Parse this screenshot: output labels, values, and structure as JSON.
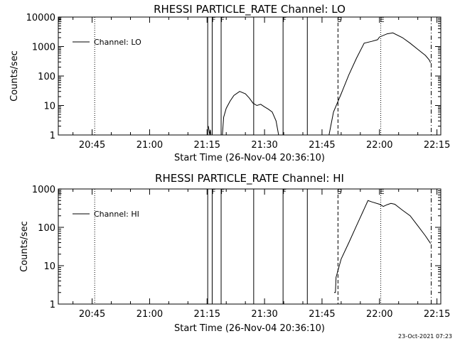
{
  "chart_data": [
    {
      "type": "line",
      "title": "RHESSI PARTICLE_RATE Channel: LO",
      "xlabel": "Start Time (26-Nov-04 20:36:10)",
      "ylabel": "Counts/sec",
      "yscale": "log",
      "ylim": [
        1,
        10000
      ],
      "xlim": [
        "20:36:10",
        "22:16:00"
      ],
      "x_ticks": [
        "20:45",
        "21:00",
        "21:15",
        "21:30",
        "21:45",
        "22:00",
        "22:15"
      ],
      "y_ticks": [
        "1",
        "10",
        "100",
        "1000",
        "10000"
      ],
      "legend": {
        "placement": "top-left",
        "entries": [
          "Channel: LO"
        ]
      },
      "grid": false,
      "series": [
        {
          "name": "Channel: LO",
          "segments": [
            [
              [
                "21:15:20",
                2
              ],
              [
                "21:15:40",
                1
              ],
              [
                "21:15:50",
                1.5
              ],
              [
                "21:16:00",
                1
              ]
            ],
            [
              [
                "21:19:00",
                1
              ],
              [
                "21:19:20",
                4
              ],
              [
                "21:20:00",
                8
              ],
              [
                "21:21:00",
                14
              ],
              [
                "21:22:00",
                22
              ],
              [
                "21:23:30",
                30
              ],
              [
                "21:25:00",
                25
              ],
              [
                "21:26:00",
                18
              ],
              [
                "21:27:00",
                12
              ],
              [
                "21:28:00",
                10
              ],
              [
                "21:29:00",
                11
              ],
              [
                "21:30:00",
                9
              ],
              [
                "21:31:00",
                7.5
              ],
              [
                "21:32:00",
                6
              ],
              [
                "21:33:00",
                3
              ],
              [
                "21:33:40",
                1
              ]
            ],
            [
              [
                "21:46:50",
                1
              ],
              [
                "21:48:00",
                6
              ],
              [
                "21:50:00",
                25
              ],
              [
                "21:52:00",
                110
              ],
              [
                "21:54:00",
                400
              ],
              [
                "21:56:00",
                1300
              ],
              [
                "21:58:00",
                1500
              ],
              [
                "21:59:30",
                1700
              ],
              [
                "22:00:00",
                2100
              ],
              [
                "22:02:00",
                2700
              ],
              [
                "22:03:30",
                2900
              ],
              [
                "22:06:00",
                2000
              ],
              [
                "22:08:00",
                1300
              ],
              [
                "22:10:00",
                800
              ],
              [
                "22:12:00",
                500
              ],
              [
                "22:13:00",
                350
              ],
              [
                "22:13:20",
                280
              ]
            ]
          ]
        }
      ],
      "markers": [
        {
          "label": "E",
          "time": "20:36:10",
          "style": "dotted"
        },
        {
          "label": "",
          "time": "20:45:40",
          "style": "dotted"
        },
        {
          "label": "F",
          "time": "21:16:20",
          "style": "solid"
        },
        {
          "label": "F",
          "time": "21:18:40",
          "style": "solid"
        },
        {
          "label": "",
          "time": "21:15:10",
          "style": "solid"
        },
        {
          "label": "",
          "time": "21:27:10",
          "style": "solid"
        },
        {
          "label": "F",
          "time": "21:34:50",
          "style": "solid"
        },
        {
          "label": "",
          "time": "21:41:10",
          "style": "solid"
        },
        {
          "label": "S",
          "time": "21:49:10",
          "style": "dashed"
        },
        {
          "label": "E",
          "time": "22:00:20",
          "style": "dotted"
        },
        {
          "label": "",
          "time": "22:13:30",
          "style": "dashdot"
        }
      ]
    },
    {
      "type": "line",
      "title": "RHESSI PARTICLE_RATE Channel: HI",
      "xlabel": "Start Time (26-Nov-04 20:36:10)",
      "ylabel": "Counts/sec",
      "yscale": "log",
      "ylim": [
        1,
        1000
      ],
      "xlim": [
        "20:36:10",
        "22:16:00"
      ],
      "x_ticks": [
        "20:45",
        "21:00",
        "21:15",
        "21:30",
        "21:45",
        "22:00",
        "22:15"
      ],
      "y_ticks": [
        "1",
        "10",
        "100",
        "1000"
      ],
      "legend": {
        "placement": "top-left",
        "entries": [
          "Channel: HI"
        ]
      },
      "grid": false,
      "series": [
        {
          "name": "Channel: HI",
          "segments": [
            [
              [
                "21:48:10",
                2
              ],
              [
                "21:48:30",
                2
              ],
              [
                "21:48:40",
                5
              ],
              [
                "21:50:00",
                15
              ],
              [
                "21:52:00",
                40
              ],
              [
                "21:54:00",
                110
              ],
              [
                "21:56:00",
                300
              ],
              [
                "21:57:00",
                500
              ],
              [
                "21:58:00",
                460
              ],
              [
                "22:00:00",
                400
              ],
              [
                "22:01:00",
                350
              ],
              [
                "22:02:00",
                390
              ],
              [
                "22:03:00",
                420
              ],
              [
                "22:04:00",
                400
              ],
              [
                "22:06:00",
                280
              ],
              [
                "22:08:00",
                200
              ],
              [
                "22:10:00",
                110
              ],
              [
                "22:12:00",
                60
              ],
              [
                "22:13:20",
                38
              ]
            ]
          ]
        }
      ],
      "markers": [
        {
          "label": "E",
          "time": "20:36:10",
          "style": "dotted"
        },
        {
          "label": "",
          "time": "20:45:40",
          "style": "dotted"
        },
        {
          "label": "F",
          "time": "21:16:20",
          "style": "solid"
        },
        {
          "label": "F",
          "time": "21:18:40",
          "style": "solid"
        },
        {
          "label": "",
          "time": "21:15:10",
          "style": "solid"
        },
        {
          "label": "",
          "time": "21:27:10",
          "style": "solid"
        },
        {
          "label": "F",
          "time": "21:34:50",
          "style": "solid"
        },
        {
          "label": "",
          "time": "21:41:10",
          "style": "solid"
        },
        {
          "label": "S",
          "time": "21:49:10",
          "style": "dashed"
        },
        {
          "label": "E",
          "time": "22:00:20",
          "style": "dotted"
        },
        {
          "label": "",
          "time": "22:13:30",
          "style": "dashdot"
        }
      ]
    }
  ],
  "footer": {
    "timestamp": "23-Oct-2021 07:23"
  },
  "colors": {
    "background": "#ffffff",
    "foreground": "#000000"
  }
}
